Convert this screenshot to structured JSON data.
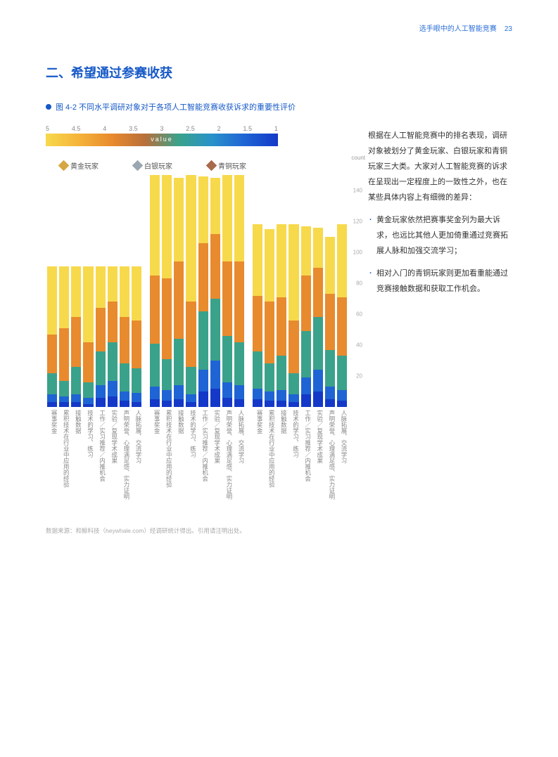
{
  "header": {
    "right": "选手眼中的人工智能竞赛",
    "page": "23"
  },
  "title": "二、希望通过参赛收获",
  "figure_caption": "图 4-2 不同水平调研对象对于各项人工智能竞赛收获诉求的重要性评价",
  "color_scale": {
    "ticks": [
      "5",
      "4.5",
      "4",
      "3.5",
      "3",
      "2.5",
      "2",
      "1.5",
      "1"
    ],
    "label": "value",
    "gradient": [
      "#f7d94c",
      "#f5b33a",
      "#e88a2e",
      "#b86f3a",
      "#3aa28a",
      "#2a92c9",
      "#1f64d4",
      "#1439c8"
    ]
  },
  "legend": {
    "items": [
      {
        "label": "黄金玩家",
        "badge_color": "#d6a642"
      },
      {
        "label": "白银玩家",
        "badge_color": "#9aa7b3"
      },
      {
        "label": "青铜玩家",
        "badge_color": "#a86a4b"
      }
    ],
    "count_label": "count"
  },
  "segment_colors": {
    "s1": "#1439c8",
    "s2": "#1f64d4",
    "s3": "#3aa28a",
    "s4": "#e88a2e",
    "s5": "#f7d94c"
  },
  "yaxis": {
    "min": 0,
    "max": 150,
    "ticks": [
      20,
      40,
      60,
      80,
      100,
      120,
      140
    ]
  },
  "categories": [
    "赛事奖金",
    "累积技术在行业中应用的经验",
    "接触数据",
    "技术的学习、练习",
    "工作／实习推荐／内推机会",
    "实验／复现学术成果",
    "声明荣誉、心理满足感、实力证明",
    "人脉拓展、交流学习"
  ],
  "panels": [
    {
      "name": "黄金玩家",
      "bars": [
        {
          "total": 91,
          "seg": [
            3,
            5,
            14,
            25,
            44
          ]
        },
        {
          "total": 91,
          "seg": [
            3,
            4,
            10,
            34,
            40
          ]
        },
        {
          "total": 91,
          "seg": [
            3,
            5,
            18,
            32,
            33
          ]
        },
        {
          "total": 91,
          "seg": [
            2,
            4,
            10,
            26,
            49
          ]
        },
        {
          "total": 91,
          "seg": [
            6,
            8,
            22,
            28,
            27
          ]
        },
        {
          "total": 91,
          "seg": [
            7,
            10,
            25,
            26,
            23
          ]
        },
        {
          "total": 91,
          "seg": [
            4,
            6,
            18,
            30,
            33
          ]
        },
        {
          "total": 91,
          "seg": [
            3,
            6,
            16,
            31,
            35
          ]
        }
      ]
    },
    {
      "name": "白银玩家",
      "bars": [
        {
          "total": 150,
          "seg": [
            5,
            8,
            28,
            44,
            65
          ]
        },
        {
          "total": 150,
          "seg": [
            4,
            7,
            20,
            52,
            67
          ]
        },
        {
          "total": 148,
          "seg": [
            5,
            9,
            30,
            50,
            54
          ]
        },
        {
          "total": 150,
          "seg": [
            3,
            5,
            18,
            42,
            82
          ]
        },
        {
          "total": 149,
          "seg": [
            10,
            14,
            38,
            44,
            43
          ]
        },
        {
          "total": 148,
          "seg": [
            12,
            18,
            40,
            42,
            36
          ]
        },
        {
          "total": 150,
          "seg": [
            6,
            10,
            30,
            48,
            56
          ]
        },
        {
          "total": 150,
          "seg": [
            5,
            9,
            28,
            52,
            56
          ]
        }
      ]
    },
    {
      "name": "青铜玩家",
      "bars": [
        {
          "total": 118,
          "seg": [
            5,
            7,
            24,
            36,
            46
          ]
        },
        {
          "total": 115,
          "seg": [
            4,
            6,
            18,
            40,
            47
          ]
        },
        {
          "total": 118,
          "seg": [
            4,
            7,
            22,
            38,
            47
          ]
        },
        {
          "total": 118,
          "seg": [
            3,
            5,
            14,
            34,
            62
          ]
        },
        {
          "total": 117,
          "seg": [
            8,
            11,
            30,
            36,
            32
          ]
        },
        {
          "total": 116,
          "seg": [
            10,
            14,
            34,
            32,
            26
          ]
        },
        {
          "total": 110,
          "seg": [
            5,
            8,
            24,
            36,
            37
          ]
        },
        {
          "total": 118,
          "seg": [
            4,
            7,
            22,
            38,
            47
          ]
        }
      ]
    }
  ],
  "body_text": {
    "p1": "根据在人工智能竞赛中的排名表现，调研对象被划分了黄金玩家、白银玩家和青铜玩家三大类。大家对人工智能竞赛的诉求在呈现出一定程度上的一致性之外，也在某些具体内容上有细微的差异：",
    "b1": "黄金玩家依然把赛事奖金列为最大诉求，也远比其他人更加倚重通过竞赛拓展人脉和加强交流学习；",
    "b2": "相对入门的青铜玩家则更加看重能通过竞赛接触数据和获取工作机会。"
  },
  "source": "数据来源：和鲸科技（heywhale.com）经调研统计得出。引用请注明出处。"
}
